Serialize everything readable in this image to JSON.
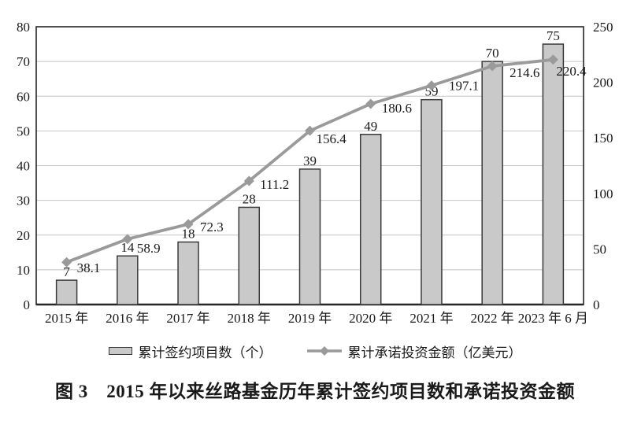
{
  "figure": {
    "caption": "图 3　2015 年以来丝路基金历年累计签约项目数和承诺投资金额"
  },
  "chart_data": {
    "type": "bar",
    "title": "",
    "xlabel": "",
    "categories": [
      "2015 年",
      "2016 年",
      "2017 年",
      "2018 年",
      "2019 年",
      "2020 年",
      "2021 年",
      "2022 年",
      "2023 年 6 月"
    ],
    "series": [
      {
        "name": "累计签约项目数（个）",
        "type": "bar",
        "axis": "left",
        "values": [
          7,
          14,
          18,
          28,
          39,
          49,
          59,
          70,
          75
        ]
      },
      {
        "name": "累计承诺投资金额（亿美元）",
        "type": "line",
        "axis": "right",
        "values": [
          38.1,
          58.9,
          72.3,
          111.2,
          156.4,
          180.6,
          197.1,
          214.6,
          220.4
        ],
        "label_offsets": [
          [
            13,
            13
          ],
          [
            12,
            17
          ],
          [
            15,
            9
          ],
          [
            14,
            10
          ],
          [
            8,
            16
          ],
          [
            14,
            11
          ],
          [
            22,
            6
          ],
          [
            22,
            14
          ],
          [
            4,
            20
          ]
        ]
      }
    ],
    "left_axis": {
      "min": 0,
      "max": 80,
      "step": 10,
      "ticks": [
        "0",
        "10",
        "20",
        "30",
        "40",
        "50",
        "60",
        "70",
        "80"
      ]
    },
    "right_axis": {
      "min": 0,
      "max": 250,
      "step": 50,
      "ticks": [
        "0",
        "50",
        "100",
        "150",
        "200",
        "250"
      ]
    },
    "grid": true,
    "legend_position": "bottom"
  },
  "colors": {
    "bar_fill": "#c9c9c9",
    "bar_stroke": "#3a3a3a",
    "line": "#9a9a9a",
    "grid": "#c4c4c4",
    "axis": "#262626",
    "text": "#1a1a1a",
    "background": "#ffffff"
  }
}
